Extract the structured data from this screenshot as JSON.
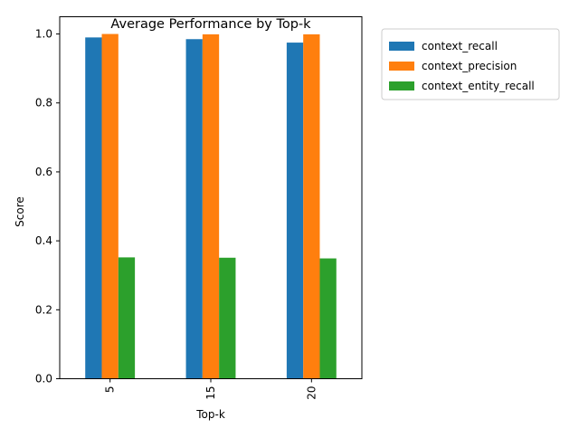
{
  "chart_data": {
    "type": "bar",
    "title": "Average Performance by Top-k",
    "xlabel": "Top-k",
    "ylabel": "Score",
    "categories": [
      "5",
      "15",
      "20"
    ],
    "ylim": [
      0,
      1.05
    ],
    "yticks": [
      "0.0",
      "0.2",
      "0.4",
      "0.6",
      "0.8",
      "1.0"
    ],
    "legend_position": "outside-top-right",
    "grid": false,
    "series": [
      {
        "name": "context_recall",
        "color": "#1f77b4",
        "values": [
          0.99,
          0.985,
          0.975
        ]
      },
      {
        "name": "context_precision",
        "color": "#ff7f0e",
        "values": [
          1.0,
          0.999,
          0.999
        ]
      },
      {
        "name": "context_entity_recall",
        "color": "#2ca02c",
        "values": [
          0.352,
          0.351,
          0.349
        ]
      }
    ]
  }
}
